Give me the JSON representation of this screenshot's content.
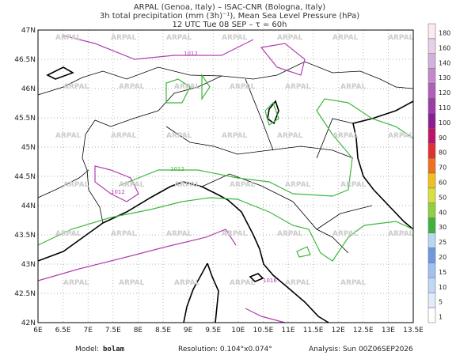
{
  "header": {
    "lines": [
      "ARPAL (Genoa, Italy)  –  ISAC-CNR (Bologna, Italy)",
      "3h total precipitation (mm (3h)⁻¹), Mean Sea Level Pressure (hPa)",
      "12 UTC Tue 08 SEP  –  τ = 60h"
    ]
  },
  "map": {
    "lon_labels": [
      "6E",
      "6.5E",
      "7E",
      "7.5E",
      "8E",
      "8.5E",
      "9E",
      "9.5E",
      "10E",
      "10.5E",
      "11E",
      "11.5E",
      "12E",
      "12.5E",
      "13E",
      "13.5E"
    ],
    "lat_labels": [
      "42N",
      "42.5N",
      "43N",
      "43.5N",
      "44N",
      "44.5N",
      "45N",
      "45.5N",
      "46N",
      "46.5N",
      "47N"
    ],
    "watermark": "ARPAL",
    "isobar_labels": [
      "1012",
      "1012",
      "1012",
      "1016"
    ]
  },
  "colorbar": {
    "labels": [
      "180",
      "160",
      "140",
      "130",
      "120",
      "110",
      "100",
      "90",
      "80",
      "70",
      "60",
      "50",
      "40",
      "30",
      "25",
      "20",
      "15",
      "10",
      "5",
      "1"
    ],
    "colors": [
      "#fbeaf4",
      "#e8d0ea",
      "#d4b0dc",
      "#c488cc",
      "#b060b8",
      "#9c3ca8",
      "#8a1c94",
      "#c0106a",
      "#e03030",
      "#f07020",
      "#f0c020",
      "#d8e040",
      "#90d040",
      "#40b040",
      "#b8d8f0",
      "#7098e0",
      "#a0c0f0",
      "#c0d8f8",
      "#e0ecfc",
      "#ffffff"
    ]
  },
  "footer": {
    "model_label": "Model:",
    "model": "bolam",
    "resolution": "Resolution: 0.104°x0.074°",
    "analysis": "Analysis: Sun 00Z06SEP2026"
  }
}
